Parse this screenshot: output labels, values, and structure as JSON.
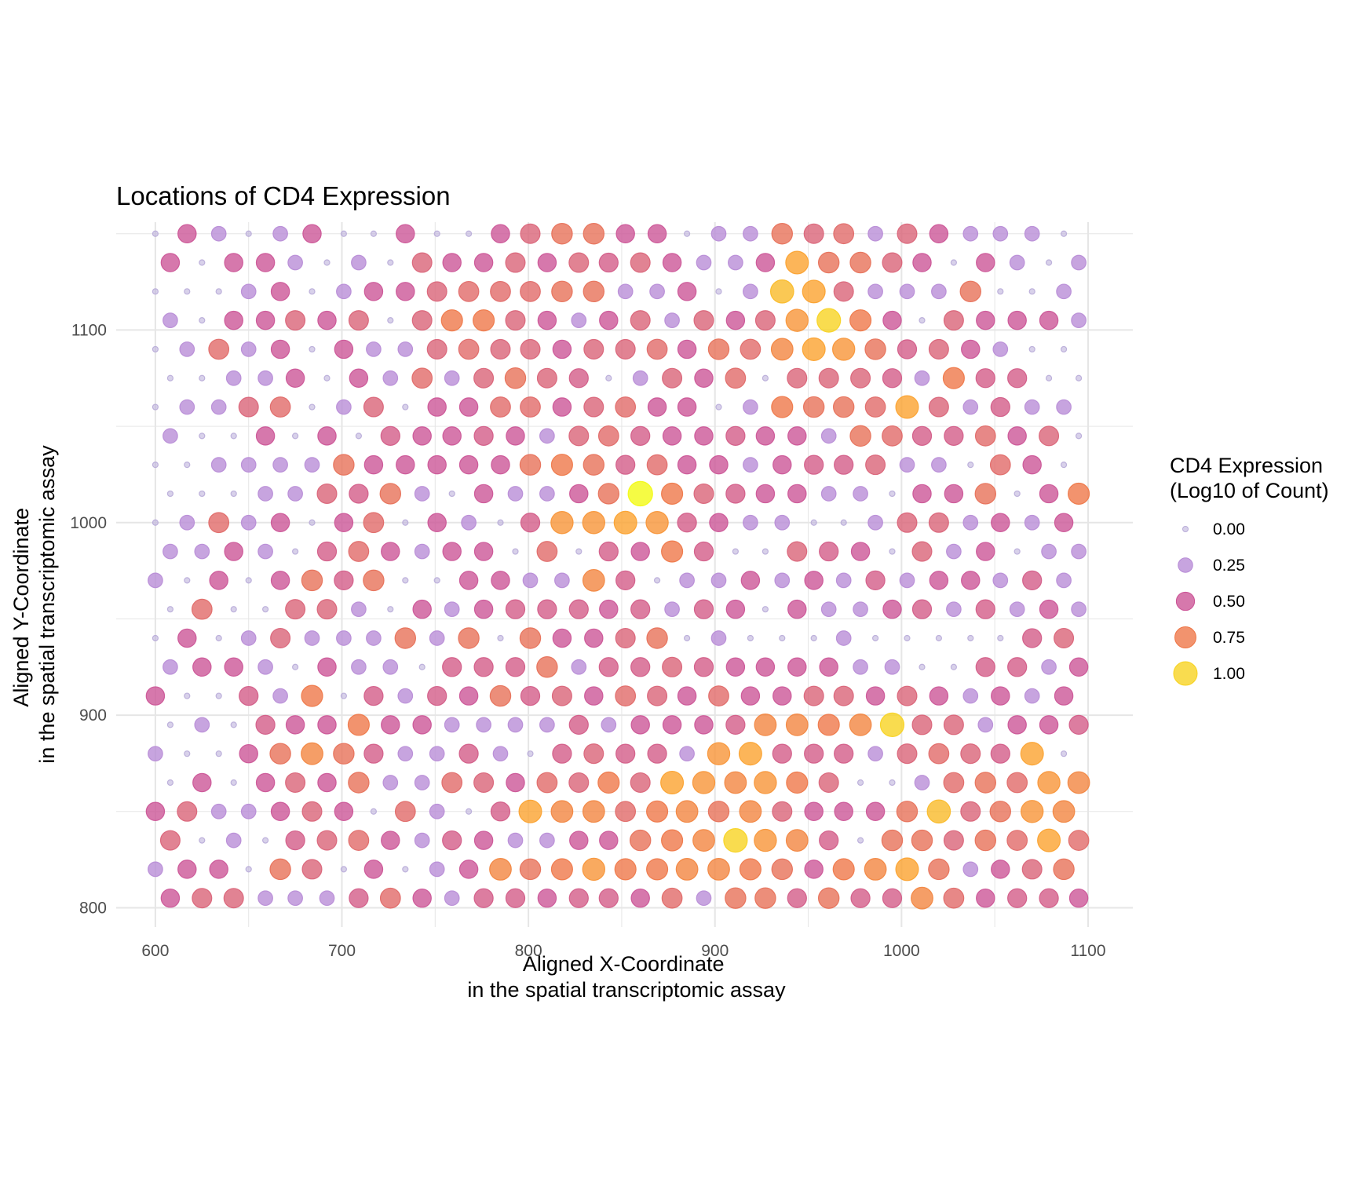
{
  "chart_data": {
    "type": "scatter",
    "title": "Locations of CD4 Expression",
    "xlabel_lines": [
      "Aligned X-Coordinate",
      "in the spatial transcriptomic assay"
    ],
    "ylabel_lines": [
      "Aligned Y-Coordinate",
      "in the spatial transcriptomic assay"
    ],
    "xlim": [
      579,
      1124
    ],
    "ylim": [
      790,
      1156
    ],
    "xticks": [
      600,
      700,
      800,
      900,
      1000,
      1100
    ],
    "yticks": [
      800,
      900,
      1000,
      1100
    ],
    "grid": true,
    "legend": {
      "title_lines": [
        "CD4 Expression",
        "(Log10 of Count)"
      ],
      "position": "right",
      "entries": [
        {
          "label": "0.00",
          "value": 0.0
        },
        {
          "label": "0.25",
          "value": 0.25
        },
        {
          "label": "0.50",
          "value": 0.5
        },
        {
          "label": "0.75",
          "value": 0.75
        },
        {
          "label": "1.00",
          "value": 1.0
        }
      ]
    },
    "color_scale": {
      "stops": [
        {
          "value": 0.0,
          "color": "#B8ABD8"
        },
        {
          "value": 0.25,
          "color": "#B78BD6"
        },
        {
          "value": 0.5,
          "color": "#CB5295"
        },
        {
          "value": 0.75,
          "color": "#EE7545"
        },
        {
          "value": 0.9,
          "color": "#FBA02A"
        },
        {
          "value": 1.0,
          "color": "#F7D21E"
        },
        {
          "value": 1.1,
          "color": "#F2FA0F"
        }
      ]
    },
    "grid_layout": {
      "odd_rows_x": [
        600,
        617,
        634,
        650,
        667,
        684,
        701,
        717,
        734,
        751,
        768,
        785,
        801,
        818,
        835,
        852,
        869,
        885,
        902,
        919,
        936,
        953,
        969,
        986,
        1003,
        1020,
        1037,
        1053,
        1070,
        1087
      ],
      "even_rows_x": [
        608,
        625,
        642,
        659,
        675,
        692,
        709,
        726,
        743,
        759,
        776,
        793,
        810,
        827,
        843,
        860,
        877,
        894,
        911,
        927,
        944,
        961,
        978,
        995,
        1011,
        1028,
        1045,
        1062,
        1079,
        1095
      ],
      "rows_y": [
        1150,
        1135,
        1120,
        1105,
        1090,
        1075,
        1060,
        1045,
        1030,
        1015,
        1000,
        985,
        970,
        955,
        940,
        925,
        910,
        895,
        880,
        865,
        850,
        835,
        820,
        805
      ]
    },
    "values": [
      [
        0.0,
        0.5,
        0.25,
        0.0,
        0.25,
        0.5,
        0.0,
        0.0,
        0.5,
        0.0,
        0.0,
        0.5,
        0.6,
        0.7,
        0.7,
        0.5,
        0.5,
        0.0,
        0.25,
        0.25,
        0.7,
        0.6,
        0.65,
        0.25,
        0.6,
        0.5,
        0.25,
        0.25,
        0.25,
        0.0
      ],
      [
        0.5,
        0.0,
        0.5,
        0.5,
        0.25,
        0.0,
        0.25,
        0.0,
        0.6,
        0.5,
        0.5,
        0.6,
        0.5,
        0.6,
        0.55,
        0.6,
        0.5,
        0.25,
        0.25,
        0.5,
        0.9,
        0.7,
        0.7,
        0.6,
        0.5,
        0.0,
        0.5,
        0.25,
        0.0,
        0.25
      ],
      [
        0.0,
        0.0,
        0.0,
        0.25,
        0.5,
        0.0,
        0.25,
        0.5,
        0.5,
        0.6,
        0.65,
        0.65,
        0.65,
        0.7,
        0.7,
        0.25,
        0.25,
        0.5,
        0.0,
        0.25,
        0.95,
        0.9,
        0.6,
        0.25,
        0.25,
        0.25,
        0.7,
        0.0,
        0.0,
        0.25
      ],
      [
        0.25,
        0.0,
        0.5,
        0.5,
        0.6,
        0.5,
        0.6,
        0.0,
        0.6,
        0.75,
        0.75,
        0.6,
        0.5,
        0.25,
        0.5,
        0.6,
        0.25,
        0.6,
        0.5,
        0.6,
        0.85,
        1.0,
        0.75,
        0.5,
        0.0,
        0.6,
        0.5,
        0.5,
        0.5,
        0.25
      ],
      [
        0.0,
        0.25,
        0.65,
        0.25,
        0.5,
        0.0,
        0.5,
        0.25,
        0.25,
        0.6,
        0.65,
        0.6,
        0.6,
        0.5,
        0.6,
        0.6,
        0.65,
        0.5,
        0.7,
        0.65,
        0.8,
        0.9,
        0.85,
        0.7,
        0.55,
        0.6,
        0.5,
        0.25,
        0.0,
        0.0
      ],
      [
        0.0,
        0.0,
        0.25,
        0.25,
        0.5,
        0.0,
        0.5,
        0.25,
        0.65,
        0.25,
        0.6,
        0.7,
        0.6,
        0.55,
        0.0,
        0.25,
        0.6,
        0.5,
        0.65,
        0.0,
        0.6,
        0.6,
        0.6,
        0.55,
        0.25,
        0.75,
        0.55,
        0.55,
        0.0,
        0.0
      ],
      [
        0.0,
        0.25,
        0.25,
        0.6,
        0.65,
        0.0,
        0.25,
        0.6,
        0.0,
        0.5,
        0.5,
        0.65,
        0.65,
        0.5,
        0.6,
        0.65,
        0.5,
        0.5,
        0.0,
        0.25,
        0.75,
        0.7,
        0.7,
        0.65,
        0.9,
        0.6,
        0.25,
        0.55,
        0.25,
        0.25
      ],
      [
        0.25,
        0.0,
        0.0,
        0.5,
        0.0,
        0.5,
        0.0,
        0.55,
        0.5,
        0.5,
        0.55,
        0.5,
        0.25,
        0.6,
        0.65,
        0.55,
        0.5,
        0.5,
        0.55,
        0.5,
        0.5,
        0.25,
        0.7,
        0.65,
        0.55,
        0.55,
        0.65,
        0.5,
        0.6,
        0.0
      ],
      [
        0.0,
        0.0,
        0.25,
        0.25,
        0.25,
        0.25,
        0.7,
        0.5,
        0.5,
        0.5,
        0.5,
        0.5,
        0.7,
        0.75,
        0.7,
        0.55,
        0.65,
        0.5,
        0.5,
        0.25,
        0.5,
        0.55,
        0.55,
        0.6,
        0.25,
        0.25,
        0.0,
        0.65,
        0.5,
        0.0
      ],
      [
        0.0,
        0.0,
        0.0,
        0.25,
        0.25,
        0.6,
        0.55,
        0.7,
        0.25,
        0.0,
        0.5,
        0.25,
        0.25,
        0.5,
        0.7,
        1.1,
        0.75,
        0.6,
        0.55,
        0.5,
        0.5,
        0.25,
        0.25,
        0.0,
        0.5,
        0.5,
        0.7,
        0.0,
        0.5,
        0.75
      ],
      [
        0.0,
        0.25,
        0.65,
        0.25,
        0.5,
        0.0,
        0.5,
        0.65,
        0.0,
        0.5,
        0.25,
        0.0,
        0.55,
        0.85,
        0.85,
        0.9,
        0.85,
        0.55,
        0.5,
        0.25,
        0.25,
        0.0,
        0.0,
        0.25,
        0.6,
        0.6,
        0.25,
        0.5,
        0.25,
        0.5
      ],
      [
        0.25,
        0.25,
        0.5,
        0.25,
        0.0,
        0.55,
        0.65,
        0.5,
        0.25,
        0.5,
        0.5,
        0.0,
        0.65,
        0.0,
        0.55,
        0.5,
        0.75,
        0.55,
        0.0,
        0.0,
        0.6,
        0.55,
        0.5,
        0.0,
        0.6,
        0.25,
        0.5,
        0.0,
        0.25,
        0.25
      ],
      [
        0.25,
        0.0,
        0.5,
        0.0,
        0.5,
        0.7,
        0.55,
        0.7,
        0.0,
        0.0,
        0.5,
        0.5,
        0.25,
        0.25,
        0.8,
        0.55,
        0.0,
        0.25,
        0.25,
        0.5,
        0.25,
        0.5,
        0.25,
        0.55,
        0.25,
        0.5,
        0.5,
        0.25,
        0.55,
        0.25
      ],
      [
        0.0,
        0.65,
        0.0,
        0.0,
        0.6,
        0.6,
        0.25,
        0.0,
        0.5,
        0.25,
        0.5,
        0.55,
        0.55,
        0.55,
        0.5,
        0.55,
        0.25,
        0.55,
        0.5,
        0.0,
        0.5,
        0.25,
        0.25,
        0.5,
        0.55,
        0.25,
        0.55,
        0.25,
        0.5,
        0.25
      ],
      [
        0.0,
        0.5,
        0.0,
        0.25,
        0.6,
        0.25,
        0.25,
        0.25,
        0.7,
        0.25,
        0.7,
        0.0,
        0.7,
        0.5,
        0.5,
        0.6,
        0.7,
        0.0,
        0.25,
        0.0,
        0.0,
        0.0,
        0.25,
        0.0,
        0.0,
        0.0,
        0.0,
        0.0,
        0.55,
        0.6
      ],
      [
        0.25,
        0.5,
        0.5,
        0.25,
        0.0,
        0.5,
        0.25,
        0.25,
        0.0,
        0.55,
        0.55,
        0.55,
        0.7,
        0.25,
        0.55,
        0.55,
        0.6,
        0.55,
        0.5,
        0.5,
        0.5,
        0.5,
        0.25,
        0.25,
        0.0,
        0.0,
        0.55,
        0.55,
        0.25,
        0.5
      ],
      [
        0.5,
        0.0,
        0.0,
        0.55,
        0.25,
        0.75,
        0.0,
        0.55,
        0.25,
        0.55,
        0.5,
        0.7,
        0.55,
        0.6,
        0.5,
        0.65,
        0.6,
        0.5,
        0.65,
        0.5,
        0.5,
        0.6,
        0.6,
        0.5,
        0.6,
        0.5,
        0.25,
        0.5,
        0.25,
        0.5
      ],
      [
        0.0,
        0.25,
        0.0,
        0.55,
        0.5,
        0.5,
        0.75,
        0.5,
        0.5,
        0.25,
        0.25,
        0.25,
        0.25,
        0.55,
        0.25,
        0.5,
        0.5,
        0.5,
        0.55,
        0.8,
        0.8,
        0.75,
        0.8,
        1.0,
        0.6,
        0.6,
        0.25,
        0.5,
        0.5,
        0.55
      ],
      [
        0.25,
        0.0,
        0.0,
        0.5,
        0.7,
        0.8,
        0.7,
        0.55,
        0.25,
        0.25,
        0.55,
        0.25,
        0.0,
        0.55,
        0.6,
        0.55,
        0.55,
        0.25,
        0.85,
        0.9,
        0.55,
        0.55,
        0.55,
        0.25,
        0.6,
        0.65,
        0.6,
        0.55,
        0.9,
        0.0
      ],
      [
        0.0,
        0.5,
        0.0,
        0.5,
        0.6,
        0.5,
        0.7,
        0.25,
        0.25,
        0.65,
        0.6,
        0.5,
        0.65,
        0.6,
        0.75,
        0.6,
        0.9,
        0.85,
        0.8,
        0.85,
        0.75,
        0.6,
        0.0,
        0.0,
        0.25,
        0.65,
        0.7,
        0.65,
        0.85,
        0.8
      ],
      [
        0.5,
        0.6,
        0.25,
        0.25,
        0.5,
        0.6,
        0.5,
        0.0,
        0.65,
        0.25,
        0.0,
        0.55,
        0.9,
        0.8,
        0.8,
        0.65,
        0.75,
        0.8,
        0.7,
        0.8,
        0.6,
        0.5,
        0.5,
        0.5,
        0.7,
        0.95,
        0.6,
        0.7,
        0.85,
        0.8
      ],
      [
        0.6,
        0.0,
        0.25,
        0.0,
        0.55,
        0.6,
        0.65,
        0.5,
        0.25,
        0.55,
        0.5,
        0.25,
        0.25,
        0.5,
        0.5,
        0.7,
        0.75,
        0.8,
        1.0,
        0.85,
        0.8,
        0.55,
        0.0,
        0.7,
        0.7,
        0.6,
        0.7,
        0.65,
        0.9,
        0.65
      ],
      [
        0.25,
        0.5,
        0.5,
        0.0,
        0.7,
        0.6,
        0.0,
        0.5,
        0.0,
        0.25,
        0.5,
        0.8,
        0.7,
        0.75,
        0.85,
        0.75,
        0.75,
        0.8,
        0.8,
        0.75,
        0.7,
        0.5,
        0.75,
        0.8,
        0.9,
        0.7,
        0.25,
        0.5,
        0.6,
        0.7
      ],
      [
        0.5,
        0.6,
        0.6,
        0.25,
        0.25,
        0.25,
        0.55,
        0.65,
        0.5,
        0.25,
        0.55,
        0.55,
        0.5,
        0.55,
        0.55,
        0.5,
        0.65,
        0.25,
        0.7,
        0.7,
        0.55,
        0.7,
        0.55,
        0.55,
        0.8,
        0.65,
        0.5,
        0.55,
        0.55,
        0.5
      ]
    ]
  }
}
